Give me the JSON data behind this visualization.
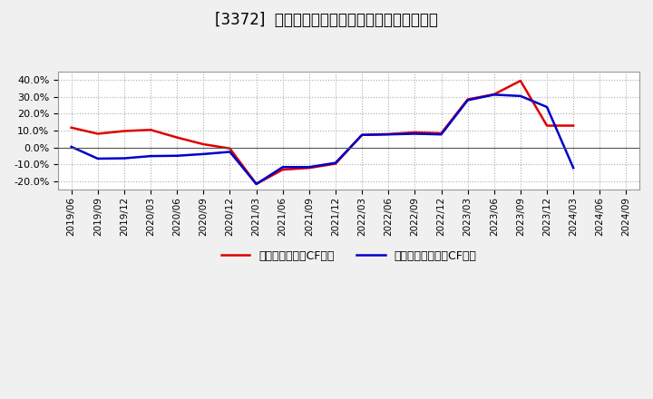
{
  "title": "[3372]  有利子負債キャッシュフロー比率の推移",
  "x_labels": [
    "2019/06",
    "2019/09",
    "2019/12",
    "2020/03",
    "2020/06",
    "2020/09",
    "2020/12",
    "2021/03",
    "2021/06",
    "2021/09",
    "2021/12",
    "2022/03",
    "2022/06",
    "2022/09",
    "2022/12",
    "2023/03",
    "2023/06",
    "2023/09",
    "2023/12",
    "2024/03",
    "2024/06",
    "2024/09"
  ],
  "red_values": [
    0.118,
    0.082,
    0.098,
    0.105,
    0.06,
    0.02,
    -0.005,
    -0.215,
    -0.13,
    -0.12,
    -0.095,
    0.075,
    0.08,
    0.09,
    0.085,
    0.285,
    0.315,
    0.395,
    0.13,
    0.13,
    null,
    null
  ],
  "blue_values": [
    0.005,
    -0.065,
    -0.063,
    -0.05,
    -0.048,
    -0.038,
    -0.025,
    -0.215,
    -0.115,
    -0.115,
    -0.09,
    0.075,
    0.078,
    0.082,
    0.078,
    0.28,
    0.313,
    0.305,
    0.24,
    -0.12,
    null,
    null
  ],
  "red_label": "有利子負債営業CF比率",
  "blue_label": "有利子負債フリーCF比率",
  "ylim": [
    -0.25,
    0.45
  ],
  "yticks": [
    -0.2,
    -0.1,
    0.0,
    0.1,
    0.2,
    0.3,
    0.4
  ],
  "background_color": "#f0f0f0",
  "plot_bg_color": "#ffffff",
  "grid_color": "#aaaaaa",
  "red_color": "#dd0000",
  "blue_color": "#0000cc",
  "title_fontsize": 12
}
